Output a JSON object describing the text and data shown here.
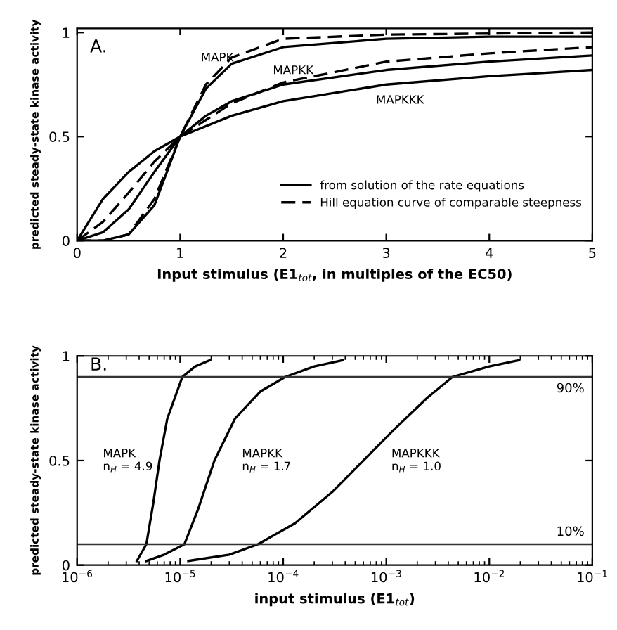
{
  "chart_data": [
    {
      "type": "line",
      "xlabel": "Input stimulus (E1$_{tot}$, in multiples of the EC50)",
      "ylabel": "predicted steady-state kinase activity",
      "xlim": [
        0,
        5
      ],
      "xticks": [
        0,
        1,
        2,
        3,
        4,
        5
      ],
      "ylim": [
        0,
        1.02
      ],
      "yticks": [
        0,
        0.5,
        1
      ],
      "grid": false,
      "legend": "bottom right",
      "marker": "none",
      "annotations": [
        "A.",
        "MAPK",
        "MAPKK",
        "MAPKKK"
      ],
      "series": [
        {
          "name": "from solution of the rate equations",
          "color": "#000000",
          "line_style": "solid",
          "x": [
            0,
            0.25,
            0.5,
            0.75,
            1,
            1.5,
            2,
            3,
            4,
            5
          ],
          "values": [
            0,
            0.2,
            0.33,
            0.43,
            0.5,
            0.6,
            0.67,
            0.75,
            0.79,
            0.82
          ]
        },
        {
          "color": "#000000",
          "line_style": "solid",
          "x": [
            0,
            0.25,
            0.5,
            0.75,
            1,
            1.25,
            1.5,
            2,
            3,
            4,
            5
          ],
          "values": [
            0,
            0.04,
            0.15,
            0.33,
            0.5,
            0.6,
            0.67,
            0.75,
            0.82,
            0.86,
            0.89
          ]
        },
        {
          "color": "#000000",
          "line_style": "solid",
          "x": [
            0,
            0.25,
            0.5,
            0.75,
            1,
            1.25,
            1.5,
            2,
            3,
            4,
            5
          ],
          "values": [
            0,
            0,
            0.03,
            0.17,
            0.5,
            0.73,
            0.85,
            0.93,
            0.97,
            0.98,
            0.98
          ]
        },
        {
          "name": "Hill equation curve of comparable steepness",
          "color": "#000000",
          "line_style": "dashed",
          "x": [
            0,
            0.25,
            0.5,
            0.75,
            1,
            1.5,
            2,
            3,
            4,
            5
          ],
          "values": [
            0,
            0.09,
            0.23,
            0.38,
            0.5,
            0.66,
            0.76,
            0.86,
            0.9,
            0.93
          ]
        },
        {
          "color": "#000000",
          "line_style": "dashed",
          "x": [
            0,
            0.25,
            0.5,
            0.75,
            1,
            1.25,
            1.5,
            2,
            3,
            5
          ],
          "values": [
            0,
            0,
            0.03,
            0.2,
            0.5,
            0.75,
            0.88,
            0.97,
            0.99,
            1.0
          ]
        }
      ]
    },
    {
      "type": "line",
      "xlabel": "input stimulus (E1$_{tot}$)",
      "ylabel": "predicted steady-state kinase activity",
      "log": "x",
      "xlim": [
        1e-06,
        0.1
      ],
      "xticks": [
        {
          "value": 1e-06,
          "label": "10$^{−6}$"
        },
        {
          "value": 1e-05,
          "label": "10$^{−5}$"
        },
        {
          "value": 0.0001,
          "label": "10$^{−4}$"
        },
        {
          "value": 0.001,
          "label": "10$^{−3}$"
        },
        {
          "value": 0.01,
          "label": "10$^{−2}$"
        },
        {
          "value": 0.1,
          "label": "10$^{−1}$"
        }
      ],
      "ylim": [
        0,
        1
      ],
      "yticks": [
        0,
        0.5,
        1
      ],
      "grid": false,
      "marker": "none",
      "line_style": "solid",
      "ref_lines": [
        {
          "axis": "y",
          "value": 0.9,
          "label": "90%"
        },
        {
          "axis": "y",
          "value": 0.1,
          "label": "10%"
        }
      ],
      "annotations": [
        "B.",
        "MAPK\nn$_{H}$ = 4.9",
        "MAPKK\nn$_{H}$ = 1.7",
        "MAPKKK\nn$_{H}$ = 1.0"
      ],
      "series": [
        {
          "color": "#000000",
          "x": [
            3.8e-06,
            4.7e-06,
            5.5e-06,
            6.3e-06,
            7.5e-06,
            1.05e-05,
            1.4e-05,
            1.95e-05
          ],
          "values": [
            0.02,
            0.1,
            0.3,
            0.5,
            0.7,
            0.9,
            0.95,
            0.98
          ]
        },
        {
          "color": "#000000",
          "x": [
            4.7e-06,
            7e-06,
            1.1e-05,
            1.5e-05,
            2.15e-05,
            3.4e-05,
            6e-05,
            0.000105,
            0.0002,
            0.00038
          ],
          "values": [
            0.02,
            0.05,
            0.1,
            0.27,
            0.5,
            0.7,
            0.83,
            0.9,
            0.95,
            0.98
          ]
        },
        {
          "color": "#000000",
          "x": [
            1.2e-05,
            3e-05,
            5.7e-05,
            0.00013,
            0.0003,
            0.0006,
            0.0012,
            0.0025,
            0.0044,
            0.01,
            0.0195
          ],
          "values": [
            0.02,
            0.05,
            0.1,
            0.2,
            0.35,
            0.5,
            0.65,
            0.8,
            0.9,
            0.95,
            0.98
          ]
        }
      ]
    }
  ]
}
